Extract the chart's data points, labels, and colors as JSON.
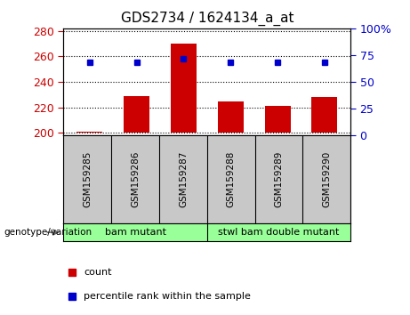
{
  "title": "GDS2734 / 1624134_a_at",
  "samples": [
    "GSM159285",
    "GSM159286",
    "GSM159287",
    "GSM159288",
    "GSM159289",
    "GSM159290"
  ],
  "bar_values": [
    201,
    229,
    270,
    225,
    221,
    228
  ],
  "percentile_values": [
    255.5,
    255.5,
    258,
    255.5,
    255.5,
    255.5
  ],
  "ylim_left": [
    198,
    282
  ],
  "ylim_right": [
    0,
    100
  ],
  "yticks_left": [
    200,
    220,
    240,
    260,
    280
  ],
  "yticks_right": [
    0,
    25,
    50,
    75,
    100
  ],
  "ytick_labels_right": [
    "0",
    "25",
    "50",
    "75",
    "100%"
  ],
  "bar_color": "#cc0000",
  "percentile_color": "#0000cc",
  "bar_bottom": 200,
  "groups": [
    {
      "label": "bam mutant",
      "indices": [
        0,
        1,
        2
      ]
    },
    {
      "label": "stwl bam double mutant",
      "indices": [
        3,
        4,
        5
      ]
    }
  ],
  "group_color": "#99ff99",
  "tick_area_color": "#c8c8c8",
  "legend_count_label": "count",
  "legend_percentile_label": "percentile rank within the sample",
  "genotype_label": "genotype/variation"
}
